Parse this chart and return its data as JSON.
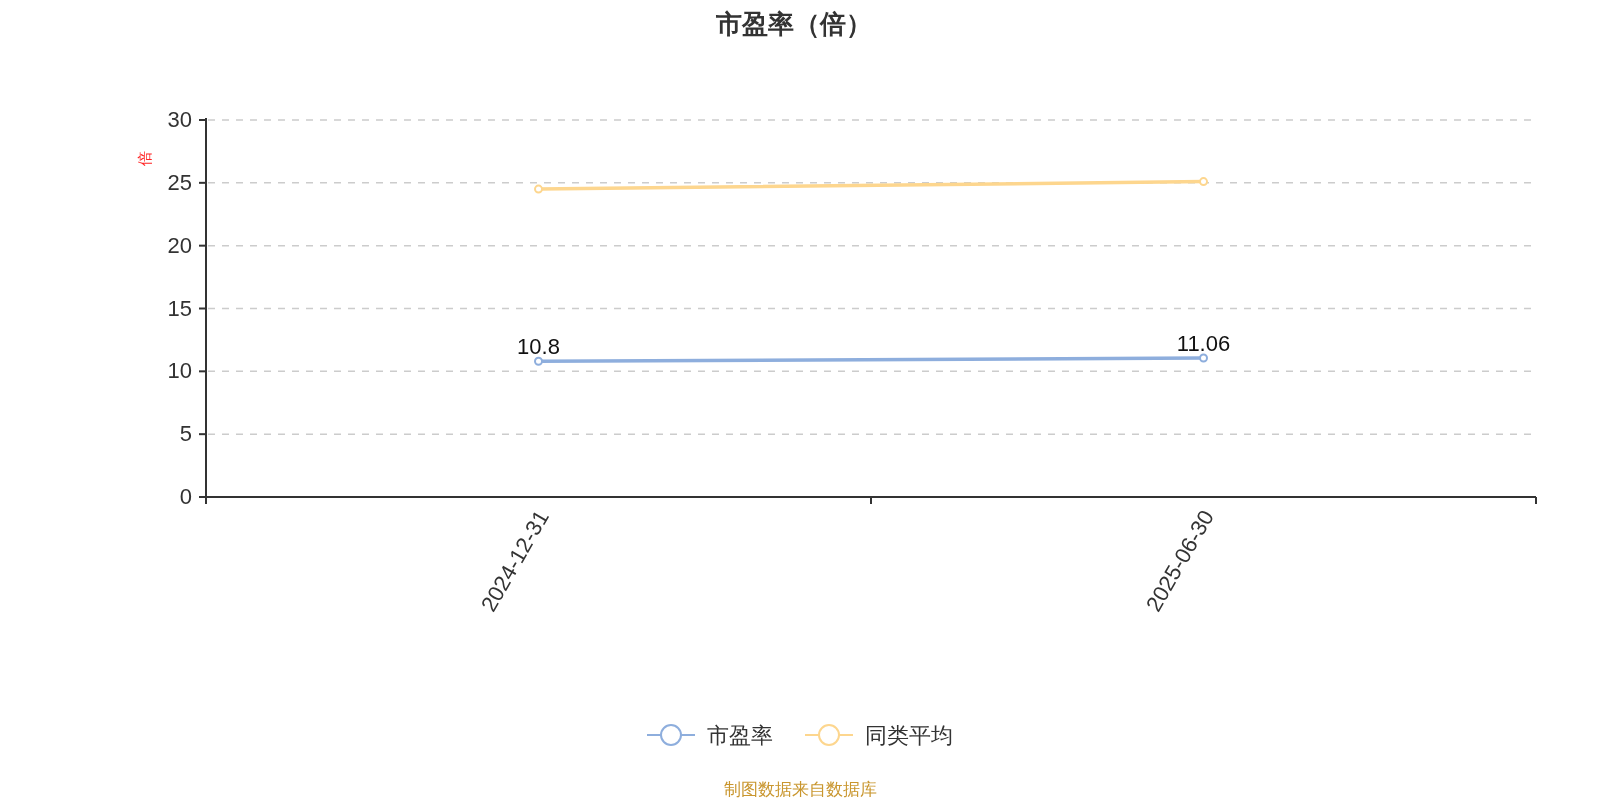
{
  "chart_data": {
    "type": "line",
    "title": "市盈率（倍）",
    "ylabel": "倍",
    "categories": [
      "2024-12-31",
      "2025-06-30"
    ],
    "series": [
      {
        "name": "市盈率",
        "color": "#8eaedd",
        "values": [
          10.8,
          11.06
        ],
        "value_labels": [
          "10.8",
          "11.06"
        ]
      },
      {
        "name": "同类平均",
        "color": "#fdd68e",
        "values": [
          24.5,
          25.1
        ]
      }
    ],
    "ylim": [
      0,
      30
    ],
    "yticks": [
      0,
      5,
      10,
      15,
      20,
      25,
      30
    ],
    "grid": "y",
    "legend": "bottom",
    "marker": "circle",
    "line_style": "solid",
    "annotations": [
      "制图数据来自数据库"
    ]
  }
}
